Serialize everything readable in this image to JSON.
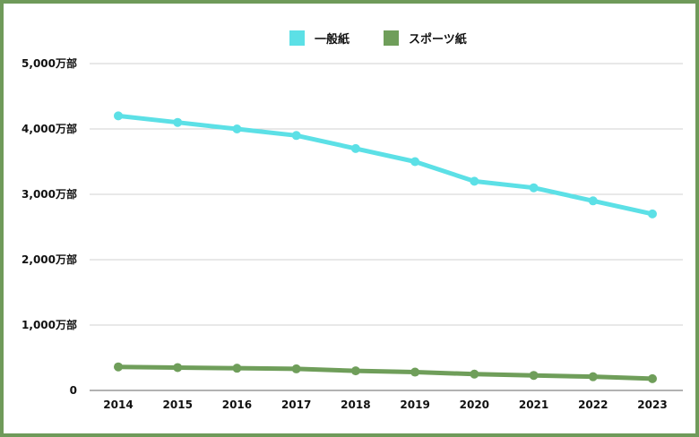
{
  "chart_data": {
    "type": "line",
    "title": "",
    "xlabel": "",
    "ylabel": "",
    "categories": [
      "2014",
      "2015",
      "2016",
      "2017",
      "2018",
      "2019",
      "2020",
      "2021",
      "2022",
      "2023"
    ],
    "ylim": [
      0,
      5000
    ],
    "yticks": [
      0,
      1000,
      2000,
      3000,
      4000,
      5000
    ],
    "ytick_labels": [
      "0",
      "1,000万部",
      "2,000万部",
      "3,000万部",
      "4,000万部",
      "5,000万部"
    ],
    "grid": true,
    "legend_position": "top-center",
    "series": [
      {
        "name": "一般紙",
        "color": "#5ce0e6",
        "values": [
          4200,
          4100,
          4000,
          3900,
          3700,
          3500,
          3200,
          3100,
          2900,
          2700
        ]
      },
      {
        "name": "スポーツ紙",
        "color": "#6f9e5a",
        "values": [
          360,
          350,
          340,
          330,
          300,
          280,
          250,
          230,
          210,
          180
        ]
      }
    ]
  }
}
